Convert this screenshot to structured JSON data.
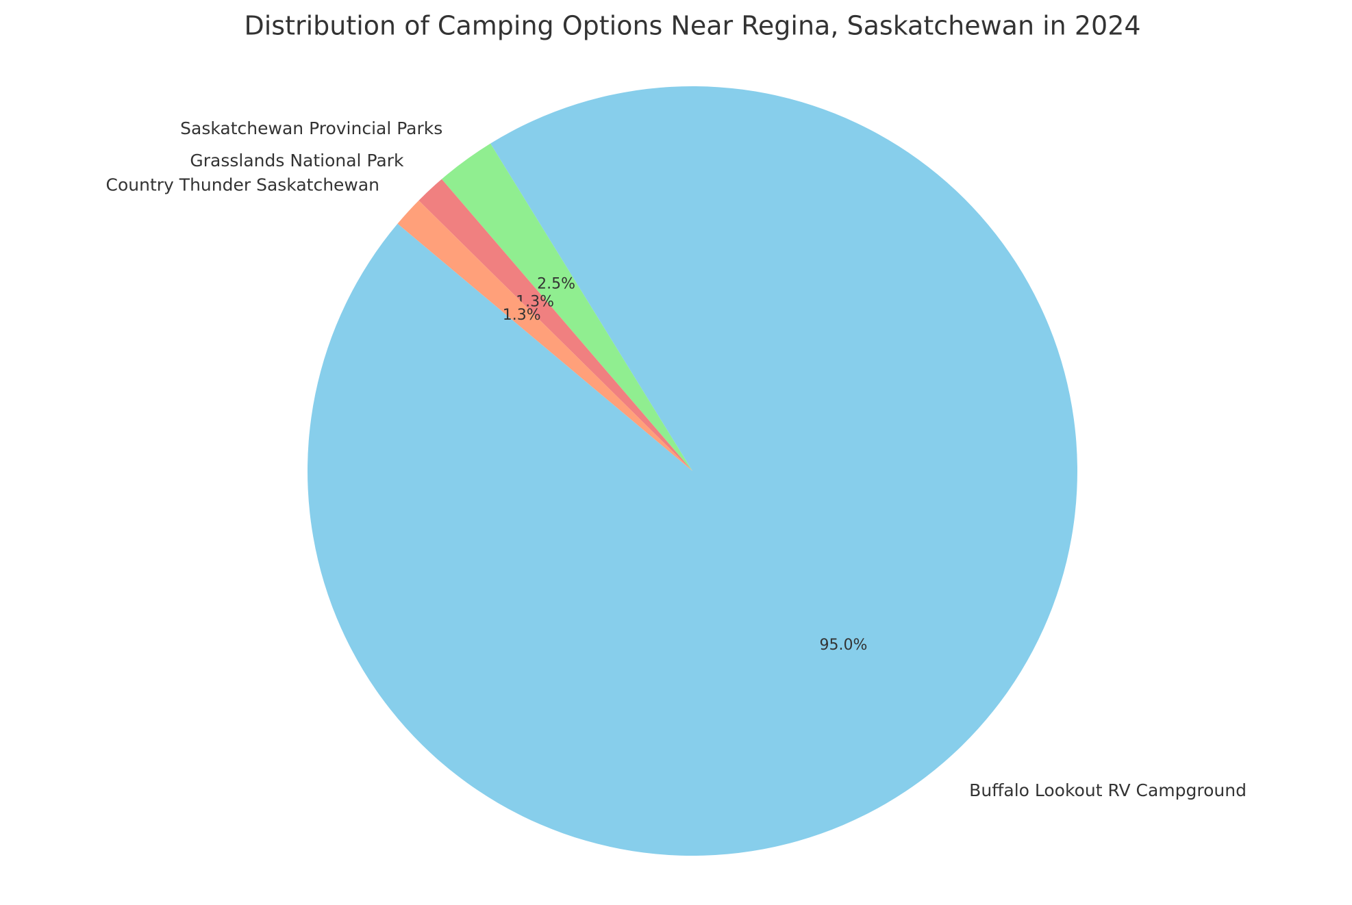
{
  "chart_data": {
    "type": "pie",
    "title": "Distribution of Camping Options Near Regina, Saskatchewan in 2024",
    "categories": [
      "Buffalo Lookout RV Campground",
      "Saskatchewan Provincial Parks",
      "Grasslands National Park",
      "Country Thunder Saskatchewan"
    ],
    "values": [
      95.0,
      2.5,
      1.3,
      1.3
    ],
    "value_labels": [
      "95.0%",
      "2.5%",
      "1.3%",
      "1.3%"
    ],
    "colors": [
      "#87ceeb",
      "#90ee90",
      "#f08080",
      "#ffa07a"
    ]
  }
}
